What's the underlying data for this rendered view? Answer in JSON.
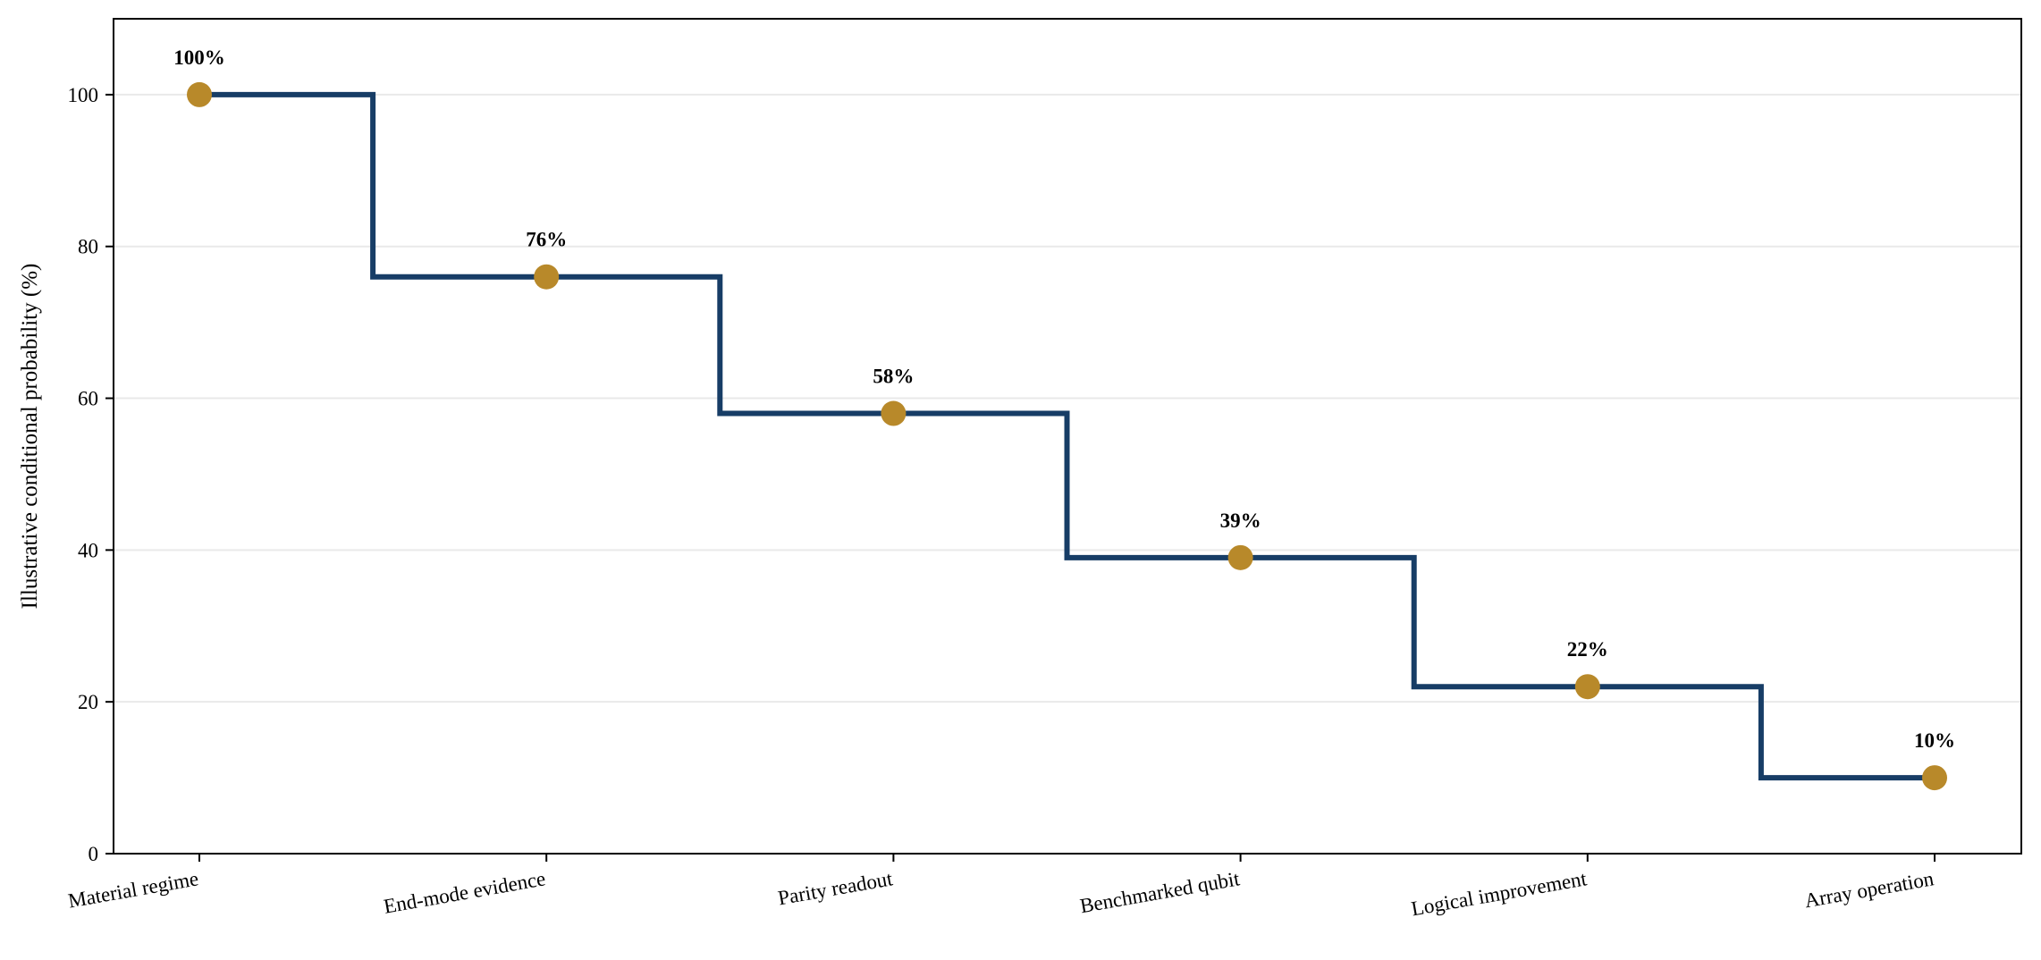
{
  "chart_data": {
    "type": "line",
    "step": "mid",
    "categories": [
      "Material regime",
      "End-mode evidence",
      "Parity readout",
      "Benchmarked qubit",
      "Logical improvement",
      "Array operation"
    ],
    "values": [
      100,
      76,
      58,
      39,
      22,
      10
    ],
    "data_labels": [
      "100%",
      "76%",
      "58%",
      "39%",
      "22%",
      "10%"
    ],
    "title": "",
    "xlabel": "",
    "ylabel": "Illustrative conditional probability (%)",
    "ylim": [
      0,
      110
    ],
    "yticks": [
      0,
      20,
      40,
      60,
      80,
      100
    ],
    "ytick_labels": [
      "0",
      "20",
      "40",
      "60",
      "80",
      "100"
    ],
    "grid": "horizontal",
    "legend": "none",
    "colors": {
      "line": "#173d66",
      "marker": "#b8892a",
      "grid": "#e9e9e9",
      "axes": "#000000"
    }
  }
}
